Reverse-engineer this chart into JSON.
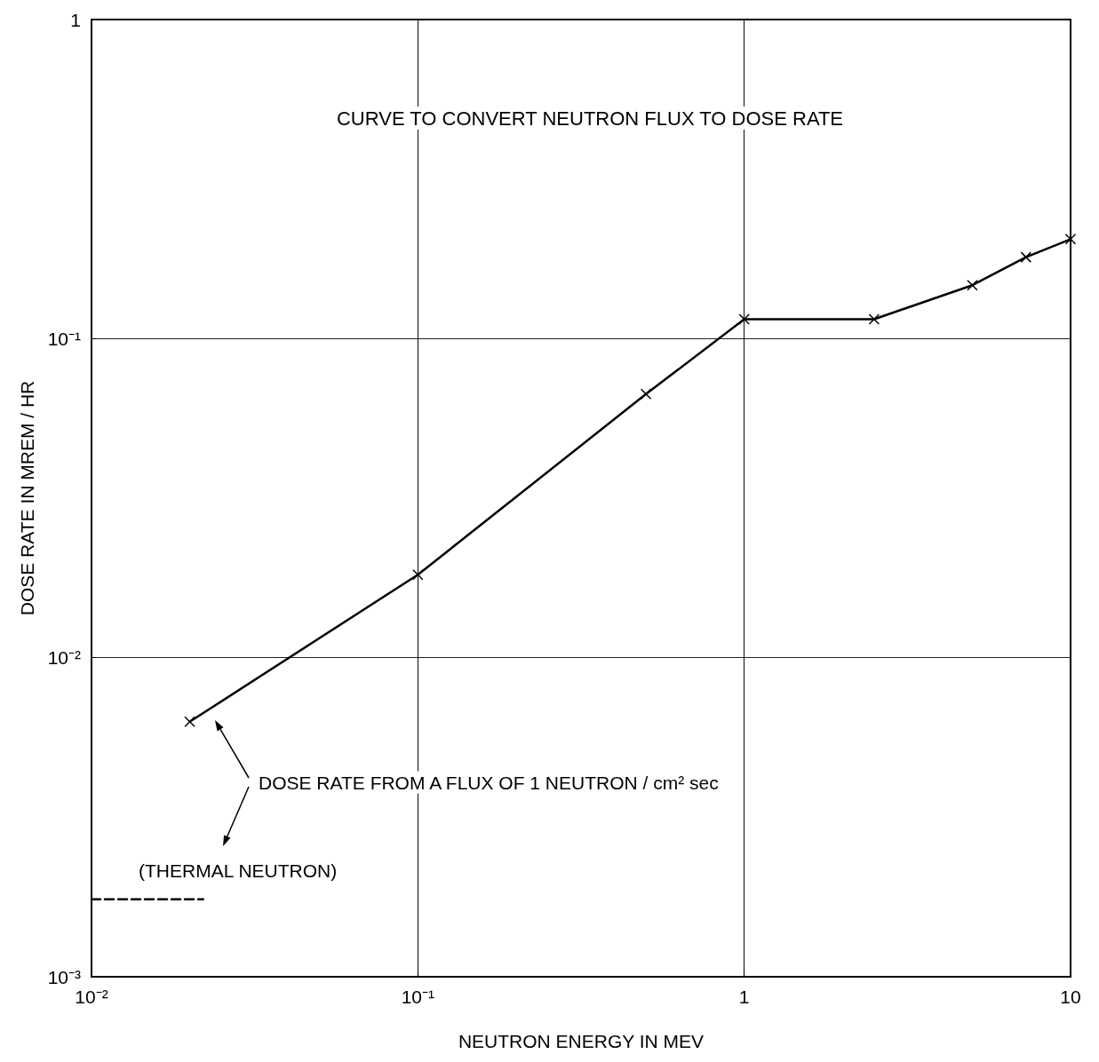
{
  "chart_data": {
    "type": "line",
    "title": "CURVE TO CONVERT NEUTRON FLUX TO DOSE RATE",
    "xlabel": "NEUTRON ENERGY IN MEV",
    "ylabel": "DOSE RATE IN MREM / HR",
    "log": "xy",
    "grid": true,
    "marker": "cross",
    "line_style": "solid",
    "xlim": [
      0.01,
      10
    ],
    "ylim": [
      0.001,
      1
    ],
    "xticks": [
      {
        "value": 0.01,
        "label": "10⁻²"
      },
      {
        "value": 0.1,
        "label": "10⁻¹"
      },
      1,
      10
    ],
    "yticks": [
      {
        "value": 0.001,
        "label": "10⁻³"
      },
      {
        "value": 0.01,
        "label": "10⁻²"
      },
      {
        "value": 0.1,
        "label": "10⁻¹"
      },
      1
    ],
    "series": [
      {
        "color": "#000000",
        "x": [
          0.02,
          0.1,
          0.5,
          1,
          2.5,
          5,
          7.3,
          10
        ],
        "values": [
          0.0063,
          0.0182,
          0.067,
          0.115,
          0.115,
          0.147,
          0.18,
          0.205
        ]
      },
      {
        "type": "line",
        "color": "#000000",
        "line_style": "dashed",
        "marker": "none",
        "x": [
          0.01,
          0.022
        ],
        "values": [
          0.00175,
          0.00175
        ]
      }
    ],
    "annotations": [
      "DOSE RATE FROM A FLUX OF 1 NEUTRON / cm² sec",
      "(THERMAL NEUTRON)"
    ]
  }
}
